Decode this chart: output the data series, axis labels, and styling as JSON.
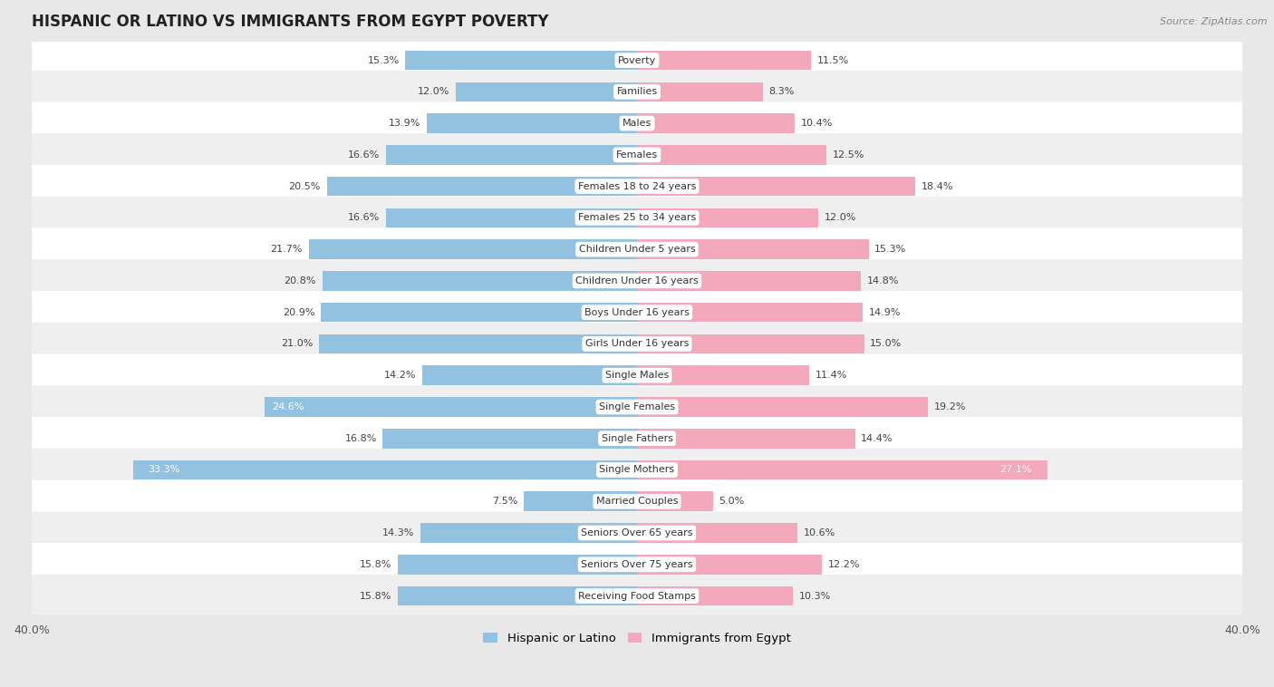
{
  "title": "HISPANIC OR LATINO VS IMMIGRANTS FROM EGYPT POVERTY",
  "source": "Source: ZipAtlas.com",
  "categories": [
    "Poverty",
    "Families",
    "Males",
    "Females",
    "Females 18 to 24 years",
    "Females 25 to 34 years",
    "Children Under 5 years",
    "Children Under 16 years",
    "Boys Under 16 years",
    "Girls Under 16 years",
    "Single Males",
    "Single Females",
    "Single Fathers",
    "Single Mothers",
    "Married Couples",
    "Seniors Over 65 years",
    "Seniors Over 75 years",
    "Receiving Food Stamps"
  ],
  "hispanic_values": [
    15.3,
    12.0,
    13.9,
    16.6,
    20.5,
    16.6,
    21.7,
    20.8,
    20.9,
    21.0,
    14.2,
    24.6,
    16.8,
    33.3,
    7.5,
    14.3,
    15.8,
    15.8
  ],
  "egypt_values": [
    11.5,
    8.3,
    10.4,
    12.5,
    18.4,
    12.0,
    15.3,
    14.8,
    14.9,
    15.0,
    11.4,
    19.2,
    14.4,
    27.1,
    5.0,
    10.6,
    12.2,
    10.3
  ],
  "hispanic_color": "#92C2E0",
  "egypt_color": "#F4A8BC",
  "hispanic_label": "Hispanic or Latino",
  "egypt_label": "Immigrants from Egypt",
  "x_max": 40.0,
  "row_bg_white": "#FFFFFF",
  "row_bg_gray": "#EFEFEF",
  "outer_bg": "#E8E8E8",
  "bar_height": 0.62,
  "title_fontsize": 12,
  "source_fontsize": 8,
  "label_fontsize": 8,
  "value_fontsize": 8
}
